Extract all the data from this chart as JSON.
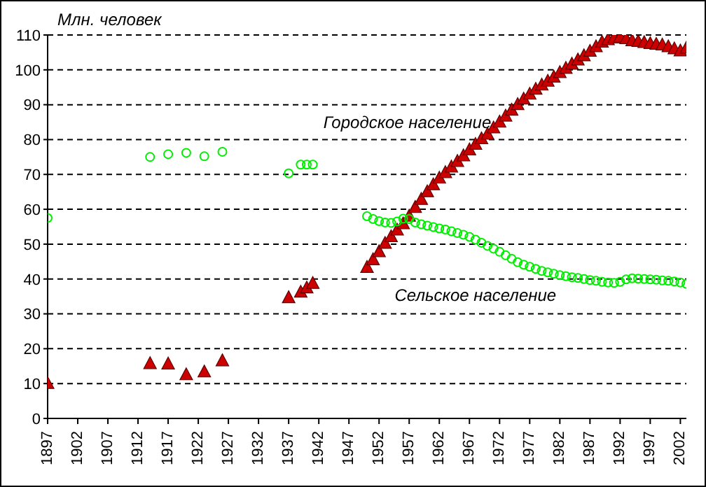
{
  "chart_data": {
    "type": "scatter",
    "ylabel": "Млн. человек",
    "xlim": [
      1897,
      2003
    ],
    "xticks": [
      1897,
      1902,
      1907,
      1912,
      1917,
      1922,
      1927,
      1932,
      1937,
      1942,
      1947,
      1952,
      1957,
      1962,
      1967,
      1972,
      1977,
      1982,
      1987,
      1992,
      1997,
      2002
    ],
    "ylim": [
      0,
      110
    ],
    "yticks": [
      0,
      10,
      20,
      30,
      40,
      50,
      60,
      70,
      80,
      90,
      100,
      110
    ],
    "grid": "y",
    "legend": false,
    "series": [
      {
        "name": "Городское население",
        "color": "#cc0000",
        "marker": "triangle",
        "x": [
          1897,
          1914,
          1917,
          1920,
          1923,
          1926,
          1937,
          1939,
          1940,
          1941,
          1950,
          1951,
          1952,
          1953,
          1954,
          1955,
          1956,
          1957,
          1958,
          1959,
          1960,
          1961,
          1962,
          1963,
          1964,
          1965,
          1966,
          1967,
          1968,
          1969,
          1970,
          1971,
          1972,
          1973,
          1974,
          1975,
          1976,
          1977,
          1978,
          1979,
          1980,
          1981,
          1982,
          1983,
          1984,
          1985,
          1986,
          1987,
          1988,
          1989,
          1990,
          1991,
          1992,
          1993,
          1994,
          1995,
          1996,
          1997,
          1998,
          1999,
          2000,
          2001,
          2002,
          2003
        ],
        "values": [
          10,
          15.7,
          15.6,
          12.5,
          13.3,
          16.5,
          34.6,
          36.2,
          37.4,
          38.7,
          43.3,
          45.5,
          47.8,
          50.2,
          52.1,
          54,
          55.8,
          58,
          60.5,
          62.8,
          65,
          67,
          68.9,
          70.5,
          72.1,
          73.7,
          75.3,
          77,
          78.6,
          80.2,
          81.5,
          83.3,
          85,
          86.7,
          88.4,
          90,
          91.6,
          93,
          94.4,
          95.6,
          96.7,
          97.9,
          99.2,
          100.4,
          101.6,
          102.8,
          104,
          105.3,
          106.6,
          107.9,
          108.6,
          109.1,
          109.4,
          108.9,
          108.3,
          108.1,
          107.8,
          107.5,
          107.3,
          107.1,
          106.6,
          106,
          105.4,
          106.2
        ]
      },
      {
        "name": "Сельское население",
        "color": "#00ee00",
        "marker": "circle",
        "x": [
          1897,
          1914,
          1917,
          1920,
          1923,
          1926,
          1937,
          1939,
          1940,
          1941,
          1950,
          1951,
          1952,
          1953,
          1954,
          1955,
          1956,
          1957,
          1958,
          1959,
          1960,
          1961,
          1962,
          1963,
          1964,
          1965,
          1966,
          1967,
          1968,
          1969,
          1970,
          1971,
          1972,
          1973,
          1974,
          1975,
          1976,
          1977,
          1978,
          1979,
          1980,
          1981,
          1982,
          1983,
          1984,
          1985,
          1986,
          1987,
          1988,
          1989,
          1990,
          1991,
          1992,
          1993,
          1994,
          1995,
          1996,
          1997,
          1998,
          1999,
          2000,
          2001,
          2002,
          2003
        ],
        "values": [
          57.5,
          75,
          75.8,
          76.2,
          75.2,
          76.5,
          70.3,
          72.8,
          72.8,
          72.8,
          58,
          57.2,
          56.6,
          56.2,
          56.1,
          56.5,
          57.3,
          57.2,
          56.2,
          55.7,
          55.3,
          54.9,
          54.5,
          54.2,
          53.7,
          53.2,
          52.7,
          52.1,
          51.3,
          50.4,
          49.5,
          48.7,
          47.8,
          46.8,
          45.8,
          44.8,
          44.1,
          43.5,
          42.9,
          42.3,
          41.9,
          41.5,
          41.1,
          40.8,
          40.5,
          40.3,
          40,
          39.7,
          39.5,
          39.2,
          39,
          38.9,
          39.2,
          39.9,
          40.2,
          40.1,
          40,
          39.9,
          39.8,
          39.6,
          39.5,
          39.3,
          39,
          38.6
        ]
      }
    ]
  }
}
